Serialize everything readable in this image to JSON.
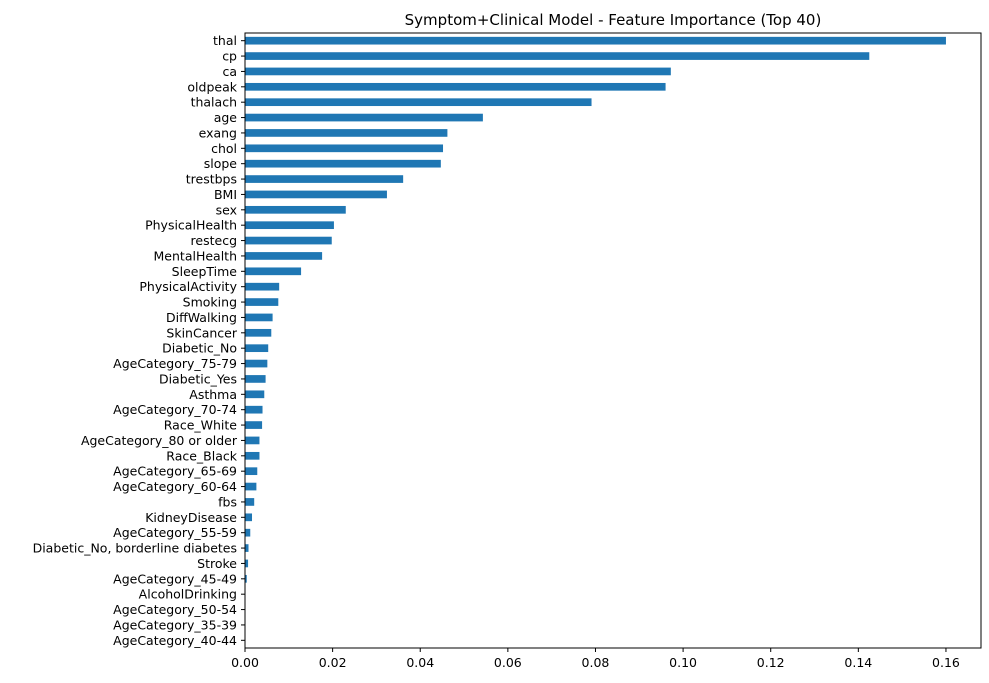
{
  "chart_data": {
    "type": "bar",
    "orientation": "horizontal",
    "title": "Symptom+Clinical Model - Feature Importance (Top 40)",
    "xlabel": "",
    "ylabel": "",
    "xlim": [
      0,
      0.168
    ],
    "xticks": [
      0.0,
      0.02,
      0.04,
      0.06,
      0.08,
      0.1,
      0.12,
      0.14,
      0.16
    ],
    "xtick_labels": [
      "0.00",
      "0.02",
      "0.04",
      "0.06",
      "0.08",
      "0.10",
      "0.12",
      "0.14",
      "0.16"
    ],
    "grid": false,
    "bar_color": "#1f77b4",
    "categories": [
      "thal",
      "cp",
      "ca",
      "oldpeak",
      "thalach",
      "age",
      "exang",
      "chol",
      "slope",
      "trestbps",
      "BMI",
      "sex",
      "PhysicalHealth",
      "restecg",
      "MentalHealth",
      "SleepTime",
      "PhysicalActivity",
      "Smoking",
      "DiffWalking",
      "SkinCancer",
      "Diabetic_No",
      "AgeCategory_75-79",
      "Diabetic_Yes",
      "Asthma",
      "AgeCategory_70-74",
      "Race_White",
      "AgeCategory_80 or older",
      "Race_Black",
      "AgeCategory_65-69",
      "AgeCategory_60-64",
      "fbs",
      "KidneyDisease",
      "AgeCategory_55-59",
      "Diabetic_No, borderline diabetes",
      "Stroke",
      "AgeCategory_45-49",
      "AlcoholDrinking",
      "AgeCategory_50-54",
      "AgeCategory_35-39",
      "AgeCategory_40-44"
    ],
    "values": [
      0.16,
      0.1425,
      0.0972,
      0.096,
      0.0791,
      0.0543,
      0.0462,
      0.0452,
      0.0447,
      0.0361,
      0.0324,
      0.023,
      0.0203,
      0.0198,
      0.0176,
      0.0128,
      0.0078,
      0.0076,
      0.0063,
      0.006,
      0.0053,
      0.0051,
      0.0047,
      0.0044,
      0.004,
      0.0039,
      0.0033,
      0.0033,
      0.0028,
      0.0026,
      0.0021,
      0.0016,
      0.0012,
      0.0008,
      0.0007,
      0.0004,
      0.0001,
      0.0001,
      0.0,
      0.0
    ]
  }
}
